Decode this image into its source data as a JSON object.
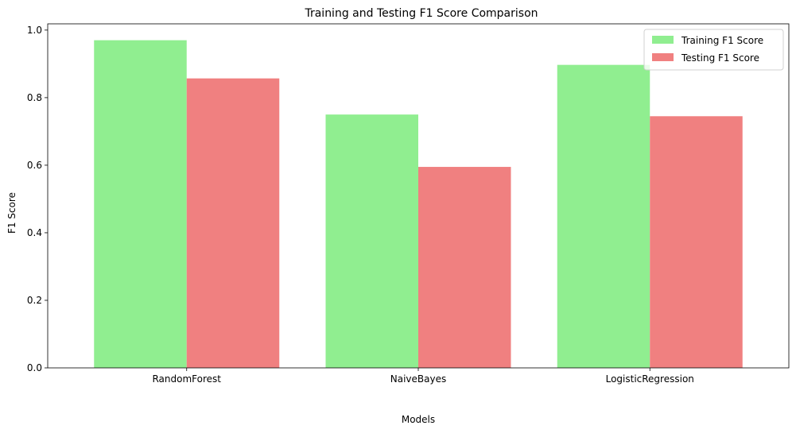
{
  "chart_data": {
    "type": "bar",
    "title": "Training and Testing F1 Score Comparison",
    "xlabel": "Models",
    "ylabel": "F1 Score",
    "categories": [
      "RandomForest",
      "NaiveBayes",
      "LogisticRegression"
    ],
    "series": [
      {
        "name": "Training F1 Score",
        "values": [
          0.97,
          0.75,
          0.897
        ],
        "color": "#90ee90"
      },
      {
        "name": "Testing F1 Score",
        "values": [
          0.857,
          0.595,
          0.745
        ],
        "color": "#f08080"
      }
    ],
    "ylim": [
      0,
      1.0185
    ],
    "yticks": [
      "0.0",
      "0.2",
      "0.4",
      "0.6",
      "0.8",
      "1.0"
    ],
    "grid": false,
    "legend_position": "top-right"
  }
}
